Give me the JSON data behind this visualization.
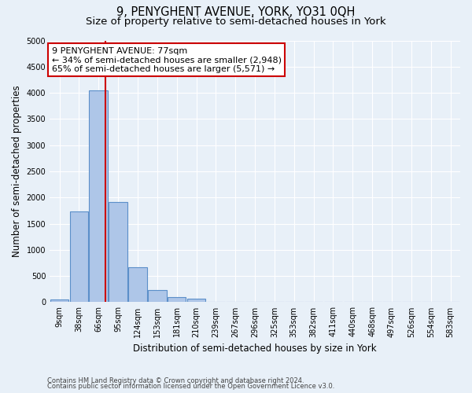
{
  "title": "9, PENYGHENT AVENUE, YORK, YO31 0QH",
  "subtitle": "Size of property relative to semi-detached houses in York",
  "xlabel": "Distribution of semi-detached houses by size in York",
  "ylabel": "Number of semi-detached properties",
  "footnote1": "Contains HM Land Registry data © Crown copyright and database right 2024.",
  "footnote2": "Contains public sector information licensed under the Open Government Licence v3.0.",
  "bar_labels": [
    "9sqm",
    "38sqm",
    "66sqm",
    "95sqm",
    "124sqm",
    "153sqm",
    "181sqm",
    "210sqm",
    "239sqm",
    "267sqm",
    "296sqm",
    "325sqm",
    "353sqm",
    "382sqm",
    "411sqm",
    "440sqm",
    "468sqm",
    "497sqm",
    "526sqm",
    "554sqm",
    "583sqm"
  ],
  "bar_values": [
    55,
    1730,
    4050,
    1920,
    660,
    230,
    95,
    70,
    0,
    0,
    0,
    0,
    0,
    0,
    0,
    0,
    0,
    0,
    0,
    0,
    0
  ],
  "bar_color": "#aec6e8",
  "bar_edge_color": "#5b8fc9",
  "red_line_x": 2.36,
  "annotation_title": "9 PENYGHENT AVENUE: 77sqm",
  "annotation_line1": "← 34% of semi-detached houses are smaller (2,948)",
  "annotation_line2": "65% of semi-detached houses are larger (5,571) →",
  "annotation_box_color": "#ffffff",
  "annotation_box_edge": "#cc0000",
  "red_line_color": "#cc0000",
  "ylim": [
    0,
    5000
  ],
  "yticks": [
    0,
    500,
    1000,
    1500,
    2000,
    2500,
    3000,
    3500,
    4000,
    4500,
    5000
  ],
  "bg_color": "#e8f0f8",
  "grid_color": "#ffffff",
  "title_fontsize": 10.5,
  "subtitle_fontsize": 9.5,
  "axis_label_fontsize": 8.5,
  "tick_fontsize": 7,
  "annotation_fontsize": 8,
  "footnote_fontsize": 6
}
